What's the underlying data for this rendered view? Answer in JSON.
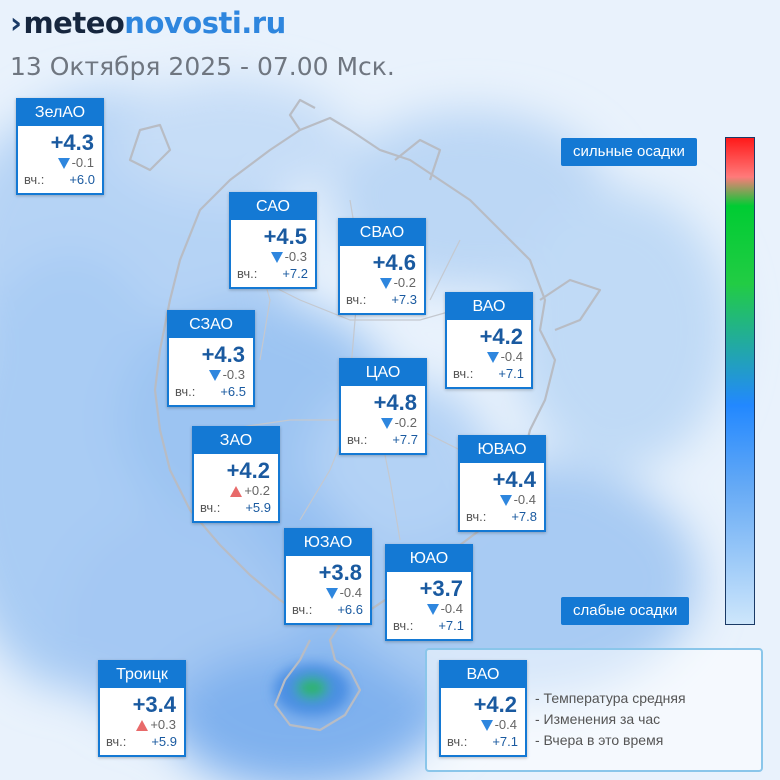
{
  "header": {
    "logo_part1": "meteo",
    "logo_part2": "novosti.ru",
    "date_line": "13 Октября 2025 - 07.00 Мск."
  },
  "districts": [
    {
      "id": "zelao",
      "name": "ЗелАО",
      "temp": "+4.3",
      "change": "-0.1",
      "trend": "down",
      "yesterday_label": "вч.:",
      "yesterday": "+6.0"
    },
    {
      "id": "sao",
      "name": "САО",
      "temp": "+4.5",
      "change": "-0.3",
      "trend": "down",
      "yesterday_label": "вч.:",
      "yesterday": "+7.2"
    },
    {
      "id": "svao",
      "name": "СВАО",
      "temp": "+4.6",
      "change": "-0.2",
      "trend": "down",
      "yesterday_label": "вч.:",
      "yesterday": "+7.3"
    },
    {
      "id": "vao",
      "name": "ВАО",
      "temp": "+4.2",
      "change": "-0.4",
      "trend": "down",
      "yesterday_label": "вч.:",
      "yesterday": "+7.1"
    },
    {
      "id": "szao",
      "name": "СЗАО",
      "temp": "+4.3",
      "change": "-0.3",
      "trend": "down",
      "yesterday_label": "вч.:",
      "yesterday": "+6.5"
    },
    {
      "id": "cao",
      "name": "ЦАО",
      "temp": "+4.8",
      "change": "-0.2",
      "trend": "down",
      "yesterday_label": "вч.:",
      "yesterday": "+7.7"
    },
    {
      "id": "zao",
      "name": "ЗАО",
      "temp": "+4.2",
      "change": "+0.2",
      "trend": "up",
      "yesterday_label": "вч.:",
      "yesterday": "+5.9"
    },
    {
      "id": "yuvao",
      "name": "ЮВАО",
      "temp": "+4.4",
      "change": "-0.4",
      "trend": "down",
      "yesterday_label": "вч.:",
      "yesterday": "+7.8"
    },
    {
      "id": "yuzao",
      "name": "ЮЗАО",
      "temp": "+3.8",
      "change": "-0.4",
      "trend": "down",
      "yesterday_label": "вч.:",
      "yesterday": "+6.6"
    },
    {
      "id": "yuao",
      "name": "ЮАО",
      "temp": "+3.7",
      "change": "-0.4",
      "trend": "down",
      "yesterday_label": "вч.:",
      "yesterday": "+7.1"
    },
    {
      "id": "troitsk",
      "name": "Троицк",
      "temp": "+3.4",
      "change": "+0.3",
      "trend": "up",
      "yesterday_label": "вч.:",
      "yesterday": "+5.9"
    }
  ],
  "scale": {
    "top_label": "сильные осадки",
    "bottom_label": "слабые осадки",
    "colors": [
      "#ff1a1a",
      "#00cc33",
      "#2288ff",
      "#cde6fb"
    ]
  },
  "legend": {
    "sample": {
      "name": "ВАО",
      "temp": "+4.2",
      "change": "-0.4",
      "trend": "down",
      "yesterday_label": "вч.:",
      "yesterday": "+7.1"
    },
    "items": [
      "- Температура средняя",
      "- Изменения за час",
      "- Вчера в это время"
    ]
  }
}
